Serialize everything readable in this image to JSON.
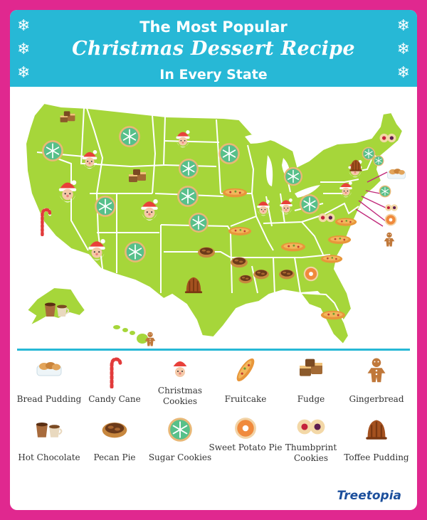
{
  "header": {
    "line1": "The Most Popular",
    "line2": "Christmas Dessert Recipe",
    "line3": "In Every State",
    "snowflake_icon": "❄"
  },
  "colors": {
    "background": "#e0288f",
    "header": "#27b8d6",
    "land": "#a6d63a",
    "state_border": "#ffffff"
  },
  "legend": [
    {
      "icon": "bread-pudding-icon",
      "label": "Bread Pudding"
    },
    {
      "icon": "candy-cane-icon",
      "label": "Candy Cane"
    },
    {
      "icon": "christmas-cookies-icon",
      "label": "Christmas Cookies"
    },
    {
      "icon": "fruitcake-icon",
      "label": "Fruitcake"
    },
    {
      "icon": "fudge-icon",
      "label": "Fudge"
    },
    {
      "icon": "gingerbread-icon",
      "label": "Gingerbread"
    },
    {
      "icon": "hot-chocolate-icon",
      "label": "Hot Chocolate"
    },
    {
      "icon": "pecan-pie-icon",
      "label": "Pecan Pie"
    },
    {
      "icon": "sugar-cookies-icon",
      "label": "Sugar Cookies"
    },
    {
      "icon": "sweet-potato-pie-icon",
      "label": "Sweet Potato Pie"
    },
    {
      "icon": "thumbprint-cookies-icon",
      "label": "Thumbprint Cookies"
    },
    {
      "icon": "toffee-pudding-icon",
      "label": "Toffee Pudding"
    }
  ],
  "brand": "Treetopia"
}
